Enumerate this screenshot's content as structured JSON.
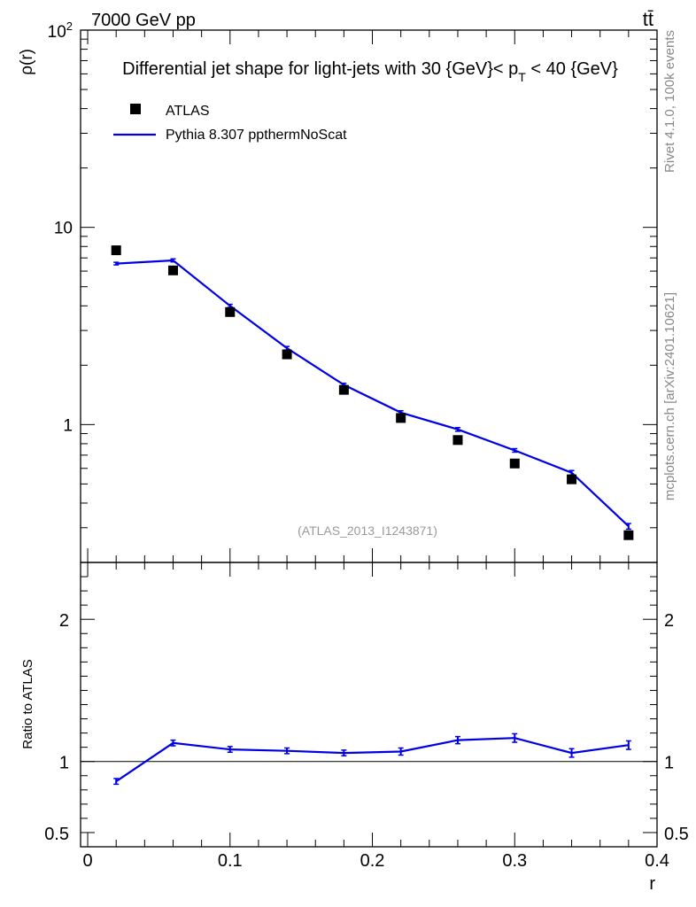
{
  "header": {
    "energy_label": "7000 GeV pp",
    "process_label": "tt̄",
    "title": "Differential jet shape for light-jets with 30 {GeV}< p_T < 40 {GeV}",
    "title_main": "Differential jet shape for light-jets with 30 {GeV}< p",
    "title_sub": "T",
    "title_tail": " < 40 {GeV}",
    "watermark": "(ATLAS_2013_I1243871)",
    "side_rivet": "Rivet 4.1.0,  100k events",
    "side_mcplots": "mcplots.cern.ch [arXiv:2401.10621]"
  },
  "colors": {
    "data": "#000000",
    "mc": "#0000e6",
    "watermark": "#999999",
    "side_text": "#888888"
  },
  "chart_data": [
    {
      "type": "scatter",
      "panel": "main",
      "title": "Differential jet shape for light-jets with 30 {GeV}< p_T < 40 {GeV}",
      "ylabel": "ρ(r)",
      "xlabel": "r",
      "yscale": "log",
      "ylim": [
        0.2,
        100
      ],
      "xlim": [
        -0.005,
        0.4
      ],
      "y_ticks": [
        {
          "value": 1,
          "label": "1"
        },
        {
          "value": 10,
          "label": "10"
        },
        {
          "value": 100,
          "label": "10²"
        }
      ],
      "x": [
        0.02,
        0.06,
        0.1,
        0.14,
        0.18,
        0.22,
        0.26,
        0.3,
        0.34,
        0.38
      ],
      "series": [
        {
          "name": "ATLAS",
          "style": "markers",
          "values": [
            7.65,
            6.05,
            3.72,
            2.27,
            1.5,
            1.08,
            0.835,
            0.635,
            0.528,
            0.275
          ]
        },
        {
          "name": "Pythia 8.307 ppthermNoScat",
          "style": "line",
          "values": [
            6.55,
            6.8,
            4.0,
            2.44,
            1.59,
            1.15,
            0.945,
            0.74,
            0.57,
            0.305
          ],
          "errors": [
            0.1,
            0.12,
            0.07,
            0.05,
            0.03,
            0.025,
            0.02,
            0.015,
            0.015,
            0.01
          ]
        }
      ],
      "legend": {
        "position": "top-left",
        "entries": [
          "ATLAS",
          "Pythia 8.307 ppthermNoScat"
        ]
      }
    },
    {
      "type": "line",
      "panel": "ratio",
      "ylabel": "Ratio to ATLAS",
      "xlabel": "r",
      "ylim": [
        0.4,
        2.4
      ],
      "xlim": [
        -0.005,
        0.4
      ],
      "reference_line": 1,
      "y_ticks": [
        {
          "value": 0.5,
          "label": "0.5"
        },
        {
          "value": 1,
          "label": "1"
        },
        {
          "value": 2,
          "label": "2"
        }
      ],
      "x_ticks": [
        {
          "value": 0,
          "label": "0"
        },
        {
          "value": 0.1,
          "label": "0.1"
        },
        {
          "value": 0.2,
          "label": "0.2"
        },
        {
          "value": 0.3,
          "label": "0.3"
        },
        {
          "value": 0.4,
          "label": "0.4"
        }
      ],
      "x": [
        0.02,
        0.06,
        0.1,
        0.14,
        0.18,
        0.22,
        0.26,
        0.3,
        0.34,
        0.38
      ],
      "series": [
        {
          "name": "Pythia 8.307 ppthermNoScat / ATLAS",
          "values": [
            0.86,
            1.13,
            1.085,
            1.075,
            1.06,
            1.07,
            1.15,
            1.165,
            1.06,
            1.115
          ],
          "errors": [
            0.02,
            0.02,
            0.02,
            0.02,
            0.02,
            0.025,
            0.025,
            0.03,
            0.03,
            0.03
          ]
        }
      ]
    }
  ]
}
